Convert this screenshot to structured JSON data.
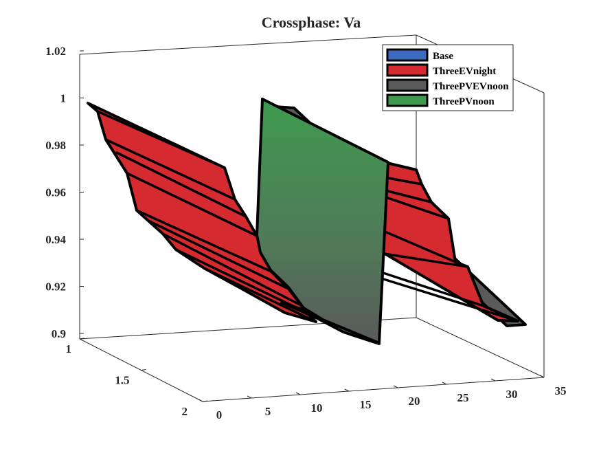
{
  "chart_data": {
    "type": "surface3d",
    "title": "Crossphase: Va",
    "xlabel": "",
    "ylabel": "",
    "zlabel": "",
    "x_ticks": [
      "0",
      "5",
      "10",
      "15",
      "20",
      "25",
      "30",
      "35"
    ],
    "y_ticks": [
      "1",
      "1.5",
      "2"
    ],
    "z_ticks": [
      "0.9",
      "0.92",
      "0.94",
      "0.96",
      "0.98",
      "1",
      "1.02"
    ],
    "xlim": [
      0,
      35
    ],
    "ylim": [
      1,
      2
    ],
    "zlim": [
      0.9,
      1.02
    ],
    "grid": false,
    "legend_position": "top-right",
    "series": [
      {
        "name": "Base",
        "color": "#3c6bbf",
        "x": [
          0,
          33
        ],
        "values": [
          1.0,
          0.903
        ]
      },
      {
        "name": "ThreeEVnight",
        "color": "#d42a30",
        "x": [
          0,
          1,
          3,
          5,
          6,
          8,
          10,
          12,
          14,
          15,
          16,
          17,
          18,
          19,
          20,
          21,
          22,
          23,
          24,
          25,
          26,
          27,
          28,
          29,
          30,
          31,
          32,
          33
        ],
        "values": [
          1.0,
          0.995,
          0.985,
          0.975,
          0.97,
          0.962,
          0.956,
          0.95,
          0.945,
          0.942,
          0.94,
          0.937,
          0.935,
          0.933,
          0.93,
          0.928,
          0.925,
          0.923,
          0.92,
          0.918,
          0.915,
          0.913,
          0.91,
          0.908,
          0.906,
          0.905,
          0.904,
          0.903
        ]
      },
      {
        "name": "ThreePVEVnoon",
        "color": "#5a5a5a",
        "x": [
          0,
          33
        ],
        "values": [
          1.0,
          0.903
        ]
      },
      {
        "name": "ThreePVnoon",
        "color": "#3f9a4f",
        "x": [
          16,
          17
        ],
        "values": [
          1.0,
          0.903
        ]
      }
    ]
  }
}
